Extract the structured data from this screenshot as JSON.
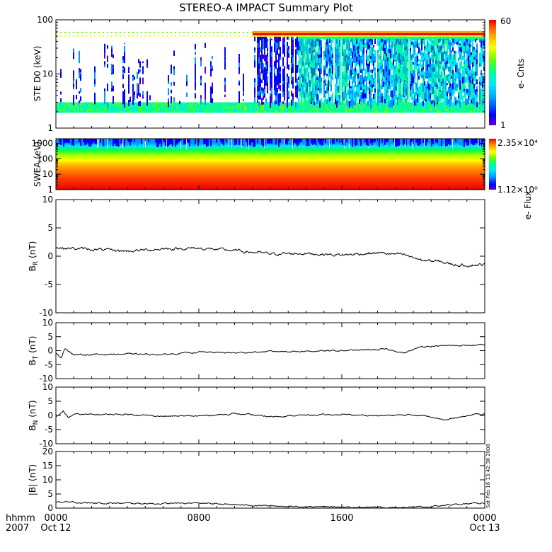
{
  "title": "STEREO-A IMPACT Summary Plot",
  "stamp": "Sat Feb 16 13:42:38 2008",
  "time_axis": {
    "corner_labels": [
      "hhmm",
      "2007"
    ],
    "ticks": [
      {
        "hhmm": "0000",
        "date": "Oct 12",
        "hours": 0
      },
      {
        "hhmm": "0800",
        "date": "",
        "hours": 8
      },
      {
        "hhmm": "1600",
        "date": "",
        "hours": 16
      },
      {
        "hhmm": "0000",
        "date": "Oct 13",
        "hours": 24
      }
    ],
    "range_hours": [
      0,
      24
    ]
  },
  "colors": {
    "frame": "#000000",
    "trace": "#000000",
    "colormap": [
      "#5a00c8",
      "#0000ff",
      "#0096ff",
      "#00e6ff",
      "#00ff96",
      "#64ff00",
      "#ffff00",
      "#ffa000",
      "#ff3c00",
      "#e60000"
    ]
  },
  "chart_data": [
    {
      "type": "heatmap",
      "ylabel": "STE D0 (keV)",
      "yscale": "log",
      "ylim": [
        1,
        100
      ],
      "yticks": [
        "1",
        "10",
        "100"
      ],
      "colorbar": {
        "label": "e- Cnts",
        "max": "60",
        "min": "1"
      }
    },
    {
      "type": "heatmap",
      "ylabel": "SWEA (eV)",
      "yscale": "log",
      "ylim": [
        1,
        2000
      ],
      "yticks": [
        "1",
        "10",
        "100",
        "1000"
      ],
      "colorbar": {
        "label": "e- Flux",
        "max": "2.35×10⁴",
        "min": "1.12×10⁰"
      }
    },
    {
      "type": "line",
      "ylabel": "B_R (nT)",
      "ylim": [
        -10,
        10
      ],
      "yticks": [
        "-10",
        "-5",
        "0",
        "5",
        "10"
      ],
      "x": [
        0,
        2,
        4,
        6,
        8,
        10,
        12,
        14,
        16,
        18,
        19.5,
        20.5,
        21.5,
        22.5,
        24
      ],
      "y": [
        1.5,
        1.2,
        0.9,
        1.3,
        1.4,
        1.0,
        0.4,
        0.5,
        0.2,
        0.6,
        0.2,
        -0.7,
        -1.0,
        -1.6,
        -1.5
      ]
    },
    {
      "type": "line",
      "ylabel": "B_T (nT)",
      "ylim": [
        -10,
        10
      ],
      "yticks": [
        "-10",
        "-5",
        "0",
        "5",
        "10"
      ],
      "x": [
        0,
        0.3,
        0.5,
        1,
        2,
        4,
        6,
        8,
        10,
        12,
        14,
        16,
        17.5,
        18.5,
        19.5,
        20.5,
        22,
        24
      ],
      "y": [
        -1.0,
        -2.5,
        1.0,
        -1.5,
        -1.4,
        -1.2,
        -1.4,
        -0.5,
        -0.8,
        -0.3,
        -0.2,
        0.0,
        0.3,
        0.5,
        -0.8,
        1.5,
        1.8,
        2.0
      ]
    },
    {
      "type": "line",
      "ylabel": "B_N (nT)",
      "ylim": [
        -10,
        10
      ],
      "yticks": [
        "-10",
        "-5",
        "0",
        "5",
        "10"
      ],
      "x": [
        0,
        0.4,
        0.7,
        1,
        2,
        4,
        6,
        8,
        10,
        12,
        14,
        16,
        18,
        20,
        21,
        21.8,
        22.5,
        23.5,
        24
      ],
      "y": [
        -0.5,
        1.5,
        -0.8,
        0.4,
        0.3,
        0.4,
        -0.3,
        -0.2,
        0.6,
        -0.4,
        0.1,
        0.3,
        -0.1,
        0.2,
        -0.3,
        -1.6,
        -0.8,
        0.4,
        0.5
      ]
    },
    {
      "type": "line",
      "ylabel": "|B| (nT)",
      "ylim": [
        0,
        20
      ],
      "yticks": [
        "0",
        "5",
        "10",
        "15",
        "20"
      ],
      "x": [
        0,
        1,
        2,
        4,
        6,
        8,
        10,
        12,
        14,
        16,
        18,
        20,
        21,
        22,
        23,
        24
      ],
      "y": [
        2.2,
        2.0,
        1.8,
        1.7,
        1.6,
        1.8,
        1.2,
        0.8,
        0.5,
        0.4,
        0.3,
        0.3,
        0.5,
        1.2,
        1.5,
        1.9
      ]
    }
  ]
}
